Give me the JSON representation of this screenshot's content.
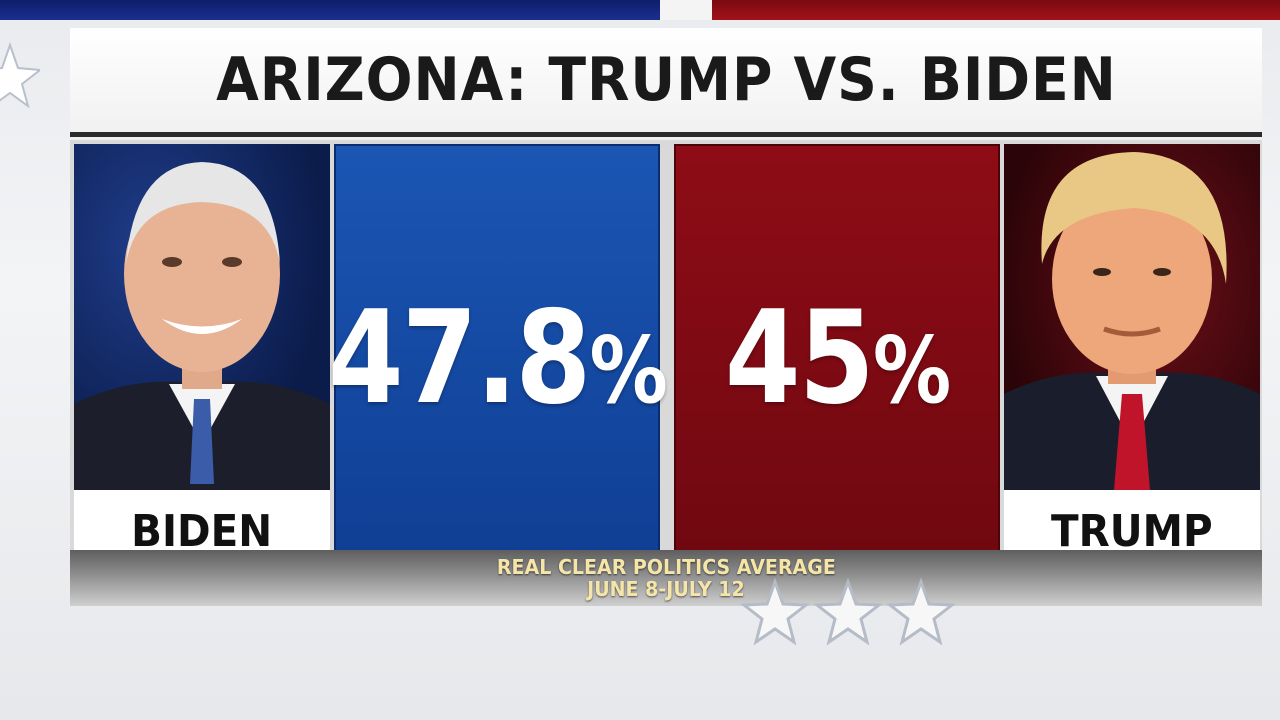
{
  "title": "ARIZONA: TRUMP VS. BIDEN",
  "candidates": {
    "left": {
      "name": "BIDEN",
      "percent_number": "47.8",
      "percent_sign": "%",
      "color": "#1b56b4"
    },
    "right": {
      "name": "TRUMP",
      "percent_number": "45",
      "percent_sign": "%",
      "color": "#8e0c16"
    }
  },
  "source": {
    "line1": "REAL CLEAR POLITICS AVERAGE",
    "line2": "JUNE 8-JULY 12"
  },
  "icons": {
    "decor_stars": "star-icon",
    "biden_photo": "person-portrait",
    "trump_photo": "person-portrait"
  }
}
